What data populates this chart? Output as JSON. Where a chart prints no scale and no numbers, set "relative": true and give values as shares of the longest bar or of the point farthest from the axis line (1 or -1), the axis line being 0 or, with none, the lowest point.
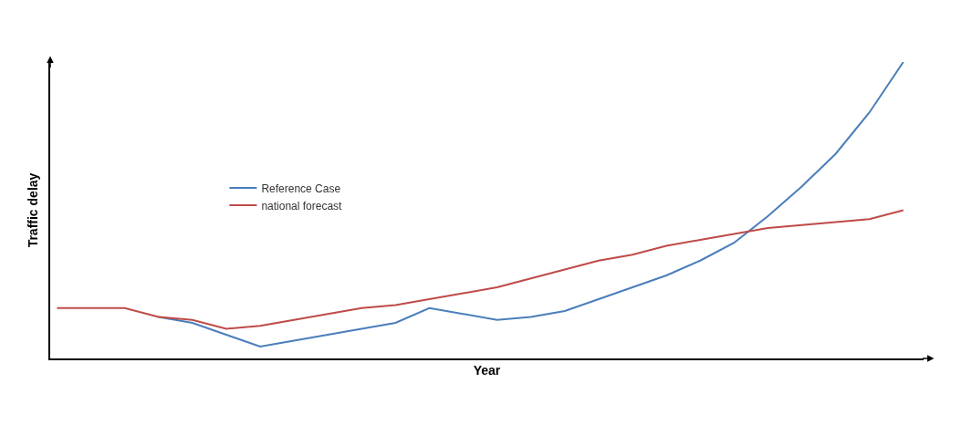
{
  "chart_data": {
    "type": "line",
    "relative": true,
    "xlabel": "Year",
    "ylabel": "Traffic delay",
    "legend": "top left",
    "marker": "none",
    "line_style": "solid",
    "categories": [
      null,
      null,
      null,
      null,
      null,
      null,
      null,
      null,
      null,
      null,
      null,
      null,
      null,
      null,
      null,
      null,
      null,
      null,
      null,
      null,
      null,
      null,
      null,
      null,
      null,
      null
    ],
    "series": [
      {
        "name": "Reference Case",
        "color": "#4a7ebb",
        "values": [
          null,
          null,
          null,
          0.14,
          0.12,
          0.08,
          0.04,
          0.06,
          0.08,
          0.1,
          0.12,
          0.17,
          0.15,
          0.13,
          0.14,
          0.16,
          0.2,
          0.24,
          0.28,
          0.33,
          0.39,
          0.48,
          0.58,
          0.69,
          0.83,
          1
        ]
      },
      {
        "name": "national forecast",
        "color": "#be4b48",
        "values": [
          0.17,
          0.17,
          0.17,
          0.14,
          0.13,
          0.1,
          0.11,
          0.13,
          0.15,
          0.17,
          0.18,
          0.2,
          0.22,
          0.24,
          0.27,
          0.3,
          0.33,
          0.35,
          0.38,
          0.4,
          0.42,
          0.44,
          0.45,
          0.46,
          0.47,
          0.5
        ]
      }
    ]
  }
}
